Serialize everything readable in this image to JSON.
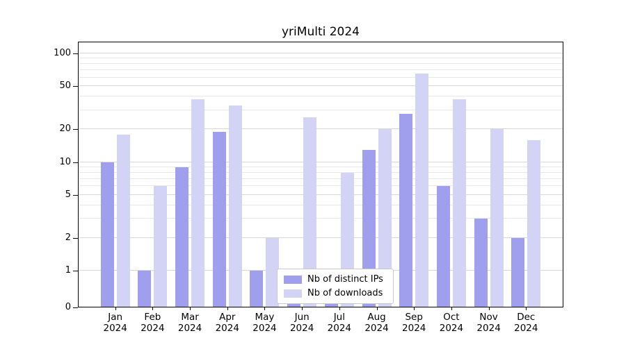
{
  "title": "yriMulti 2024",
  "chart_data": {
    "type": "bar",
    "title": "yriMulti 2024",
    "categories": [
      "Jan",
      "Feb",
      "Mar",
      "Apr",
      "May",
      "Jun",
      "Jul",
      "Aug",
      "Sep",
      "Oct",
      "Nov",
      "Dec"
    ],
    "year": "2024",
    "series": [
      {
        "name": "Nb of distinct IPs",
        "color": "#9f9fee",
        "values": [
          10,
          1,
          9,
          19,
          1,
          1,
          1,
          13,
          28,
          6,
          3,
          2
        ]
      },
      {
        "name": "Nb of downloads",
        "color": "#d3d3f6",
        "values": [
          18,
          6,
          38,
          33,
          2,
          26,
          8,
          20,
          65,
          38,
          20,
          16
        ]
      }
    ],
    "yscale": "log-with-zero-baseline",
    "yticks": [
      0,
      1,
      2,
      5,
      10,
      20,
      50,
      100
    ],
    "minor_gridlines": [
      3,
      4,
      6,
      7,
      8,
      9,
      30,
      40,
      60,
      70,
      80,
      90
    ],
    "ylim": [
      0,
      128
    ],
    "grid": "horizontal",
    "legend_position": "lower center"
  }
}
